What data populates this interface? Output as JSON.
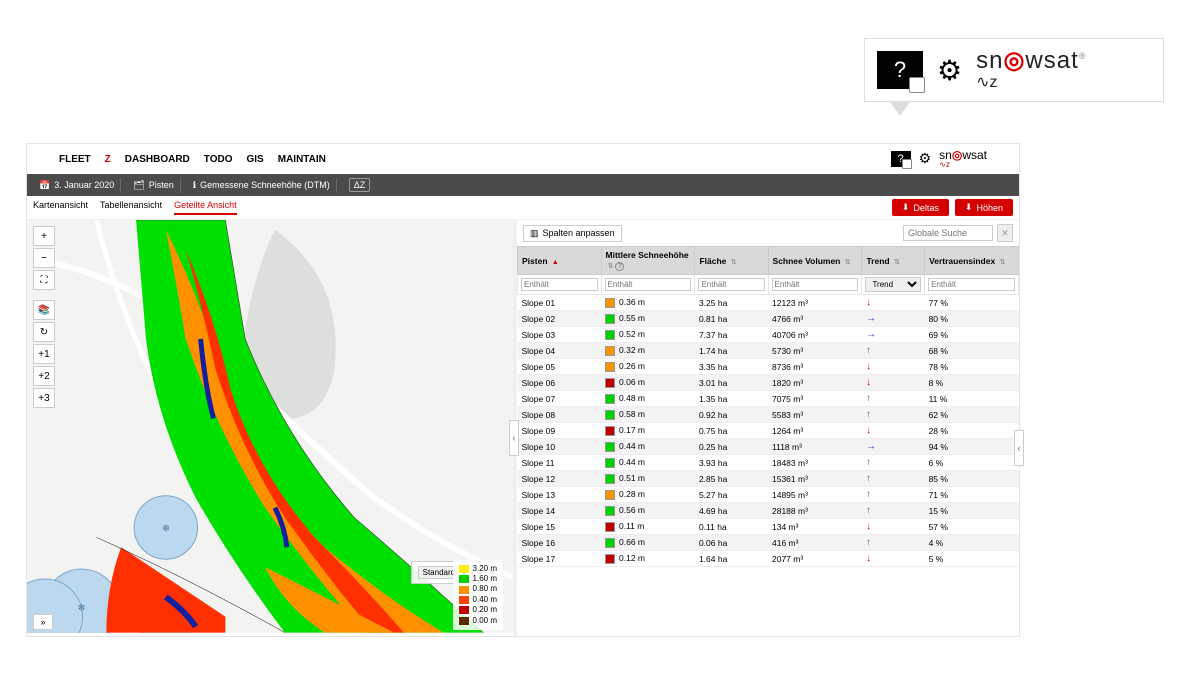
{
  "callout": {
    "logo_word_pre": "sn",
    "logo_word_o": "◎",
    "logo_word_post": "wsat",
    "logo_sub": "∿z",
    "reg": "®"
  },
  "nav": {
    "items": [
      "FLEET",
      "Z",
      "DASHBOARD",
      "TODO",
      "GIS",
      "MAINTAIN"
    ],
    "active_index": 1
  },
  "subbar": {
    "date": "3. Januar 2020",
    "layer": "Pisten",
    "metric": "Gemessene Schneehöhe (DTM)",
    "dz": "ΔZ"
  },
  "tabs": {
    "items": [
      "Kartenansicht",
      "Tabellenansicht",
      "Geteilte Ansicht"
    ],
    "active_index": 2
  },
  "buttons": {
    "deltas": "Deltas",
    "hohen": "Höhen"
  },
  "map_controls": [
    "+",
    "−",
    "⛶",
    "",
    "📚",
    "↻",
    "+1",
    "+2",
    "+3"
  ],
  "legend_card": {
    "select": "Standard",
    "icon1": "≡",
    "icon2": "✕"
  },
  "legend": [
    {
      "color": "#fff000",
      "label": "3.20 m"
    },
    {
      "color": "#00d000",
      "label": "1.60 m"
    },
    {
      "color": "#ff9000",
      "label": "0.80 m"
    },
    {
      "color": "#ff4000",
      "label": "0.40 m"
    },
    {
      "color": "#c00000",
      "label": "0.20 m"
    },
    {
      "color": "#5a2a00",
      "label": "0.00 m"
    }
  ],
  "datapane": {
    "columns_btn": "Spalten anpassen",
    "search_placeholder": "Globale Suche",
    "headers": [
      "Pisten",
      "Mittlere Schneehöhe",
      "Fläche",
      "Schnee Volumen",
      "Trend",
      "Vertrauensindex"
    ],
    "filter_placeholder": "Enthält",
    "trend_placeholder": "Trend",
    "trend_colors": {
      "up": "#2e8b2e",
      "down": "#d40000",
      "right": "#2030c0"
    },
    "rows": [
      {
        "piste": "Slope 01",
        "depth": "0.36 m",
        "dc": "#ff9000",
        "area": "3.25 ha",
        "vol": "12123 m³",
        "trend": "down",
        "conf": "77 %"
      },
      {
        "piste": "Slope 02",
        "depth": "0.55 m",
        "dc": "#00d000",
        "area": "0.81 ha",
        "vol": "4766 m³",
        "trend": "right",
        "conf": "80 %"
      },
      {
        "piste": "Slope 03",
        "depth": "0.52 m",
        "dc": "#00d000",
        "area": "7.37 ha",
        "vol": "40706 m³",
        "trend": "right",
        "conf": "69 %"
      },
      {
        "piste": "Slope 04",
        "depth": "0.32 m",
        "dc": "#ff9000",
        "area": "1.74 ha",
        "vol": "5730 m³",
        "trend": "up",
        "conf": "68 %"
      },
      {
        "piste": "Slope 05",
        "depth": "0.26 m",
        "dc": "#ff9000",
        "area": "3.35 ha",
        "vol": "8736 m³",
        "trend": "down",
        "conf": "78 %"
      },
      {
        "piste": "Slope 06",
        "depth": "0.06 m",
        "dc": "#c00000",
        "area": "3.01 ha",
        "vol": "1820 m³",
        "trend": "down",
        "conf": "8 %"
      },
      {
        "piste": "Slope 07",
        "depth": "0.48 m",
        "dc": "#00d000",
        "area": "1.35 ha",
        "vol": "7075 m³",
        "trend": "up",
        "conf": "11 %"
      },
      {
        "piste": "Slope 08",
        "depth": "0.58 m",
        "dc": "#00d000",
        "area": "0.92 ha",
        "vol": "5583 m³",
        "trend": "up",
        "conf": "62 %"
      },
      {
        "piste": "Slope 09",
        "depth": "0.17 m",
        "dc": "#c00000",
        "area": "0.75 ha",
        "vol": "1264 m³",
        "trend": "down",
        "conf": "28 %"
      },
      {
        "piste": "Slope 10",
        "depth": "0.44 m",
        "dc": "#00d000",
        "area": "0.25 ha",
        "vol": "1118 m³",
        "trend": "right",
        "conf": "94 %"
      },
      {
        "piste": "Slope 11",
        "depth": "0.44 m",
        "dc": "#00d000",
        "area": "3.93 ha",
        "vol": "18483 m³",
        "trend": "up",
        "conf": "6 %"
      },
      {
        "piste": "Slope 12",
        "depth": "0.51 m",
        "dc": "#00d000",
        "area": "2.85 ha",
        "vol": "15361 m³",
        "trend": "up",
        "conf": "85 %"
      },
      {
        "piste": "Slope 13",
        "depth": "0.28 m",
        "dc": "#ff9000",
        "area": "5.27 ha",
        "vol": "14895 m³",
        "trend": "up",
        "conf": "71 %"
      },
      {
        "piste": "Slope 14",
        "depth": "0.56 m",
        "dc": "#00d000",
        "area": "4.69 ha",
        "vol": "28188 m³",
        "trend": "up",
        "conf": "15 %"
      },
      {
        "piste": "Slope 15",
        "depth": "0.11 m",
        "dc": "#c00000",
        "area": "0.11 ha",
        "vol": "134 m³",
        "trend": "down",
        "conf": "57 %"
      },
      {
        "piste": "Slope 16",
        "depth": "0.66 m",
        "dc": "#00d000",
        "area": "0.06 ha",
        "vol": "416 m³",
        "trend": "up",
        "conf": "4 %"
      },
      {
        "piste": "Slope 17",
        "depth": "0.12 m",
        "dc": "#c00000",
        "area": "1.64 ha",
        "vol": "2077 m³",
        "trend": "down",
        "conf": "5 %"
      }
    ]
  },
  "map_colors": {
    "bg": "#f3f3f1",
    "water": "#dddfdd",
    "road": "#ffffff",
    "circle": "#bcd8ef",
    "circle_stroke": "#7aa7c9",
    "snow_hi": "#00e000",
    "snow_mid": "#ff9000",
    "snow_lo": "#ff3000",
    "snow_deep": "#1020a0"
  }
}
